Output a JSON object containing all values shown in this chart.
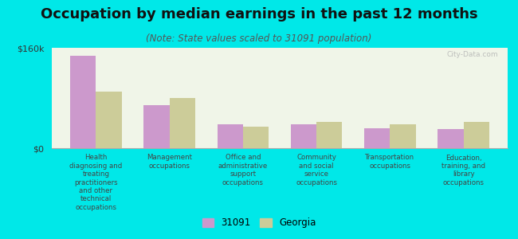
{
  "title": "Occupation by median earnings in the past 12 months",
  "subtitle": "(Note: State values scaled to 31091 population)",
  "categories": [
    "Health\ndiagnosing and\ntreating\npractitioners\nand other\ntechnical\noccupations",
    "Management\noccupations",
    "Office and\nadministrative\nsupport\noccupations",
    "Community\nand social\nservice\noccupations",
    "Transportation\noccupations",
    "Education,\ntraining, and\nlibrary\noccupations"
  ],
  "values_31091": [
    147000,
    68000,
    38000,
    38000,
    32000,
    31000
  ],
  "values_georgia": [
    90000,
    80000,
    34000,
    42000,
    38000,
    42000
  ],
  "color_31091": "#cc99cc",
  "color_georgia": "#cccc99",
  "ylim": [
    0,
    160000
  ],
  "ytick_labels": [
    "$0",
    "$160k"
  ],
  "legend_label_31091": "31091",
  "legend_label_georgia": "Georgia",
  "background_color": "#00e8e8",
  "plot_bg_color": "#f0f5e8",
  "watermark": "City-Data.com",
  "title_fontsize": 13,
  "subtitle_fontsize": 8.5,
  "tick_fontsize": 8,
  "bar_width": 0.35
}
